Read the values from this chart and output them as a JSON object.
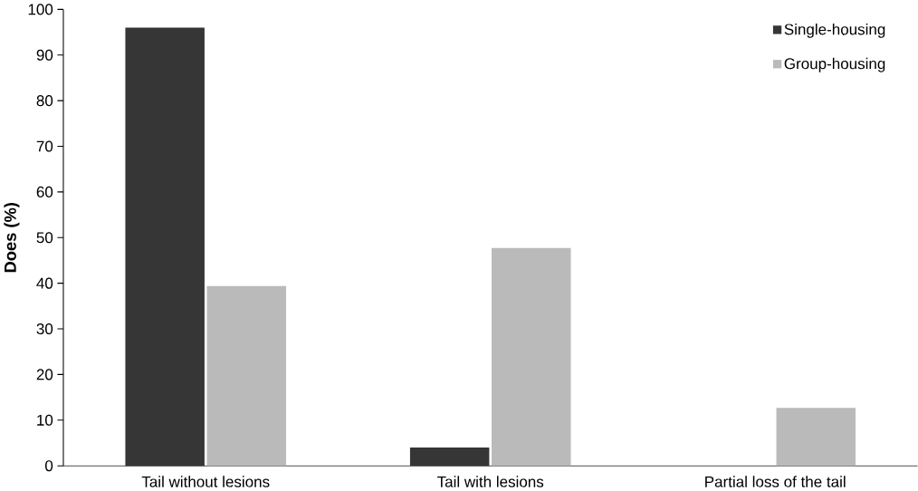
{
  "chart_data": {
    "type": "bar",
    "ylabel": "Does (%)",
    "categories": [
      "Tail without lesions",
      "Tail with lesions",
      "Partial loss of the tail"
    ],
    "series": [
      {
        "name": "Single-housing",
        "color": "#363636",
        "values": [
          96,
          4,
          0
        ]
      },
      {
        "name": "Group-housing",
        "color": "#bababa",
        "values": [
          39.4,
          47.7,
          12.7
        ]
      }
    ],
    "ylim": [
      0,
      100
    ],
    "yticks": [
      0,
      10,
      20,
      30,
      40,
      50,
      60,
      70,
      80,
      90,
      100
    ],
    "grid": false,
    "legend": "top right"
  }
}
